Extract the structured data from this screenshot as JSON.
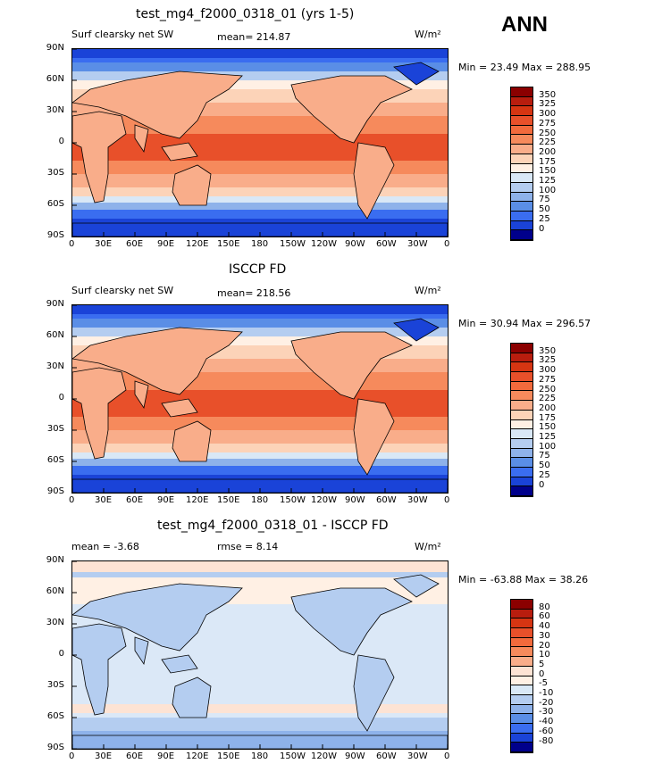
{
  "season": "ANN",
  "panels": [
    {
      "title": "test_mg4_f2000_0318_01 (yrs 1-5)",
      "left_label": "Surf clearsky net SW",
      "center_label": "mean= 214.87",
      "units": "W/m²",
      "minmax": "Min =  23.49 Max = 288.95",
      "colorbar": {
        "levels": [
          "350",
          "325",
          "300",
          "275",
          "250",
          "225",
          "200",
          "175",
          "150",
          "125",
          "100",
          "75",
          "50",
          "25",
          "0"
        ],
        "colors": [
          "#8b0000",
          "#b81d0e",
          "#d63512",
          "#e8502a",
          "#f26a3c",
          "#f68a5c",
          "#f9ad8a",
          "#fcd3b8",
          "#fff0e4",
          "#d9e8f6",
          "#b4cdf0",
          "#8eb2ea",
          "#5a8ee6",
          "#3a6df0",
          "#1a43d8",
          "#00008b"
        ]
      }
    },
    {
      "title": "ISCCP FD",
      "left_label": "Surf clearsky net SW",
      "center_label": "mean= 218.56",
      "units": "W/m²",
      "minmax": "Min =  30.94 Max = 296.57",
      "colorbar": {
        "levels": [
          "350",
          "325",
          "300",
          "275",
          "250",
          "225",
          "200",
          "175",
          "150",
          "125",
          "100",
          "75",
          "50",
          "25",
          "0"
        ],
        "colors": [
          "#8b0000",
          "#b81d0e",
          "#d63512",
          "#e8502a",
          "#f26a3c",
          "#f68a5c",
          "#f9ad8a",
          "#fcd3b8",
          "#fff0e4",
          "#d9e8f6",
          "#b4cdf0",
          "#8eb2ea",
          "#5a8ee6",
          "#3a6df0",
          "#1a43d8",
          "#00008b"
        ]
      }
    },
    {
      "title": "test_mg4_f2000_0318_01 - ISCCP FD",
      "left_label": "mean =   -3.68",
      "center_label": "rmse =    8.14",
      "units": "W/m²",
      "minmax": "Min = -63.88 Max =  38.26",
      "colorbar": {
        "levels": [
          "80",
          "60",
          "40",
          "30",
          "20",
          "10",
          "5",
          "0",
          "-5",
          "-10",
          "-20",
          "-30",
          "-40",
          "-60",
          "-80"
        ],
        "colors": [
          "#8b0000",
          "#b81d0e",
          "#d63512",
          "#e8502a",
          "#f26a3c",
          "#f68a5c",
          "#f9ad8a",
          "#fde3d4",
          "#fff0e4",
          "#d9e8f6",
          "#b4cdf0",
          "#8eb2ea",
          "#5a8ee6",
          "#3a6df0",
          "#1a43d8",
          "#00008b"
        ]
      }
    }
  ],
  "lat_ticks": [
    "90N",
    "60N",
    "30N",
    "0",
    "30S",
    "60S",
    "90S"
  ],
  "lon_ticks": [
    "0",
    "30E",
    "60E",
    "90E",
    "120E",
    "150E",
    "180",
    "150W",
    "120W",
    "90W",
    "60W",
    "30W",
    "0"
  ]
}
